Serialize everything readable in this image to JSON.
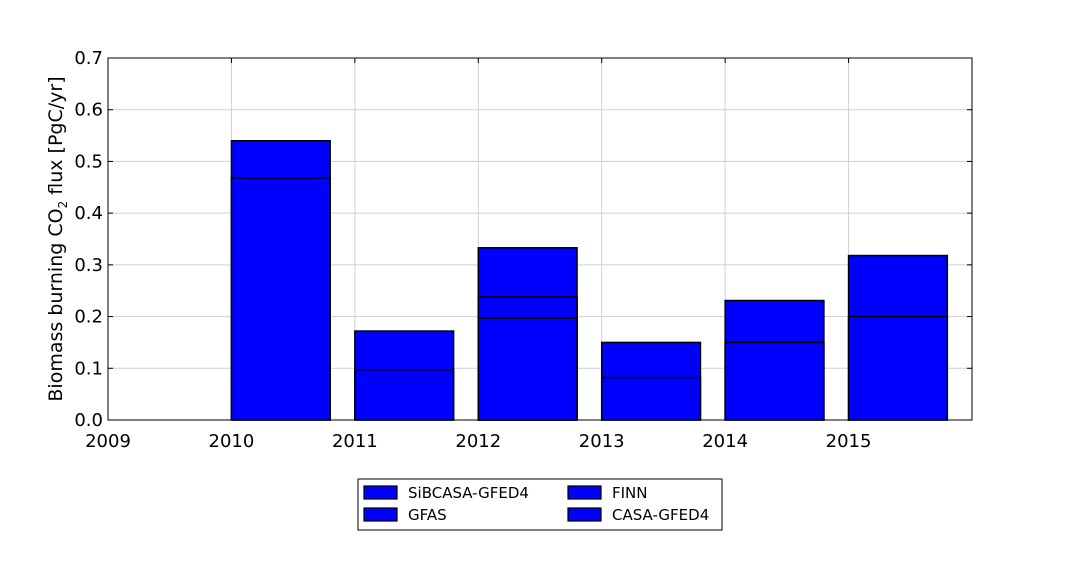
{
  "chart_data": {
    "type": "bar",
    "ylabel_main": "Biomass burning CO",
    "ylabel_sub": "2",
    "ylabel_tail": " flux [PgC/yr]",
    "xlim": [
      2009,
      2016
    ],
    "ylim": [
      0,
      0.7
    ],
    "x_ticks": [
      "2009",
      "2010",
      "2011",
      "2012",
      "2013",
      "2014",
      "2015"
    ],
    "y_ticks": [
      "0.0",
      "0.1",
      "0.2",
      "0.3",
      "0.4",
      "0.5",
      "0.6",
      "0.7"
    ],
    "grid": true,
    "bar_color": "#0000ff",
    "bar_edge_color": "#000000",
    "bars": [
      {
        "year": 2010,
        "levels": [
          0.468,
          0.54
        ]
      },
      {
        "year": 2011,
        "levels": [
          0.097,
          0.172
        ]
      },
      {
        "year": 2012,
        "levels": [
          0.197,
          0.238,
          0.333
        ]
      },
      {
        "year": 2013,
        "levels": [
          0.082,
          0.15
        ]
      },
      {
        "year": 2014,
        "levels": [
          0.15,
          0.231
        ]
      },
      {
        "year": 2015,
        "levels": [
          0.2,
          0.318
        ]
      }
    ],
    "legend": {
      "position": "bottom-center",
      "entries": [
        "SiBCASA-GFED4",
        "GFAS",
        "FINN",
        "CASA-GFED4"
      ]
    }
  }
}
